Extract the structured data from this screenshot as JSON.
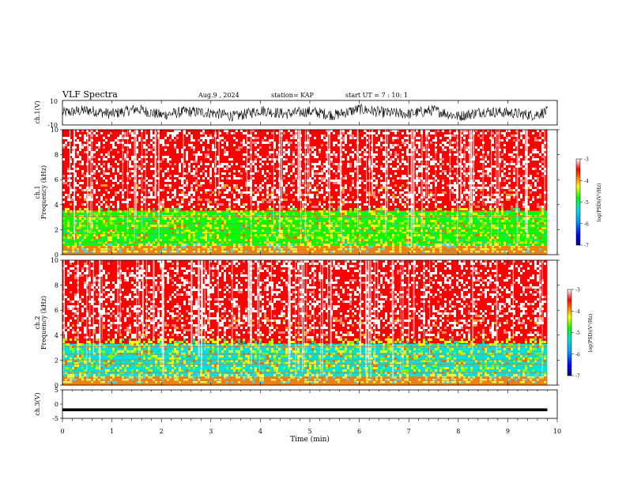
{
  "header": {
    "title": "VLF Spectra",
    "date": "Aug.9 , 2024",
    "station": "station= KAP",
    "start": "start UT = 7 : 10: 1"
  },
  "chart_data": [
    {
      "type": "line",
      "ylabel": "ch.1(V)",
      "ylim": [
        -10,
        10
      ],
      "ytick_labels": [
        "10",
        "-10"
      ],
      "x": [
        0,
        0.5,
        1,
        1.5,
        2,
        2.5,
        3,
        3.5,
        4,
        4.5,
        5,
        5.5,
        6,
        6.5,
        7,
        7.5,
        8,
        8.5,
        9,
        9.5,
        9.8
      ],
      "y": [
        0,
        2,
        -1,
        3,
        -2,
        1,
        0,
        -3,
        2,
        -1,
        1,
        -2,
        3,
        0,
        -1,
        2,
        -3,
        1,
        0,
        -2,
        1
      ],
      "envelope": [
        -7,
        7
      ],
      "color": "#000000"
    },
    {
      "type": "heatmap",
      "ylabel": "ch.1\nFrequency (kHz)",
      "ylim": [
        0,
        10
      ],
      "ytick_labels": [
        "0",
        "2",
        "4",
        "6",
        "8",
        "10"
      ],
      "colorbar": {
        "label": "log(PSD)(V²/Hz)",
        "range": [
          -7,
          -3
        ],
        "tick_labels": [
          "-3",
          "-4",
          "-5",
          "-6",
          "-7"
        ]
      },
      "frequency_bands_kHz": [
        {
          "from": 0,
          "to": 0.7,
          "logPSD": -4
        },
        {
          "from": 0.7,
          "to": 3.5,
          "logPSD": -5
        },
        {
          "from": 3.5,
          "to": 10,
          "logPSD": -3.6
        }
      ]
    },
    {
      "type": "heatmap",
      "ylabel": "ch.2\nFrequency (kHz)",
      "ylim": [
        0,
        10
      ],
      "ytick_labels": [
        "0",
        "2",
        "4",
        "6",
        "8",
        "10"
      ],
      "colorbar": {
        "label": "log(PSD)(V²/Hz)",
        "range": [
          -7,
          -3
        ],
        "tick_labels": [
          "-3",
          "-4",
          "-5",
          "-6",
          "-7"
        ]
      },
      "frequency_bands_kHz": [
        {
          "from": 0,
          "to": 0.7,
          "logPSD": -4
        },
        {
          "from": 0.7,
          "to": 3.3,
          "logPSD": -5.2
        },
        {
          "from": 3.3,
          "to": 10,
          "logPSD": -3.6
        }
      ]
    },
    {
      "type": "line",
      "ylabel": "ch.3(V)",
      "ylim": [
        -5,
        5
      ],
      "ytick_labels": [
        "5",
        "0",
        "-5"
      ],
      "x": [
        0,
        9.8
      ],
      "y": [
        -2,
        -2
      ],
      "envelope": [
        -2.5,
        -1.5
      ],
      "xlabel": "Time (min)",
      "xlim": [
        0,
        10
      ],
      "xtick_labels": [
        "0",
        "1",
        "2",
        "3",
        "4",
        "5",
        "6",
        "7",
        "8",
        "9",
        "10"
      ]
    }
  ]
}
